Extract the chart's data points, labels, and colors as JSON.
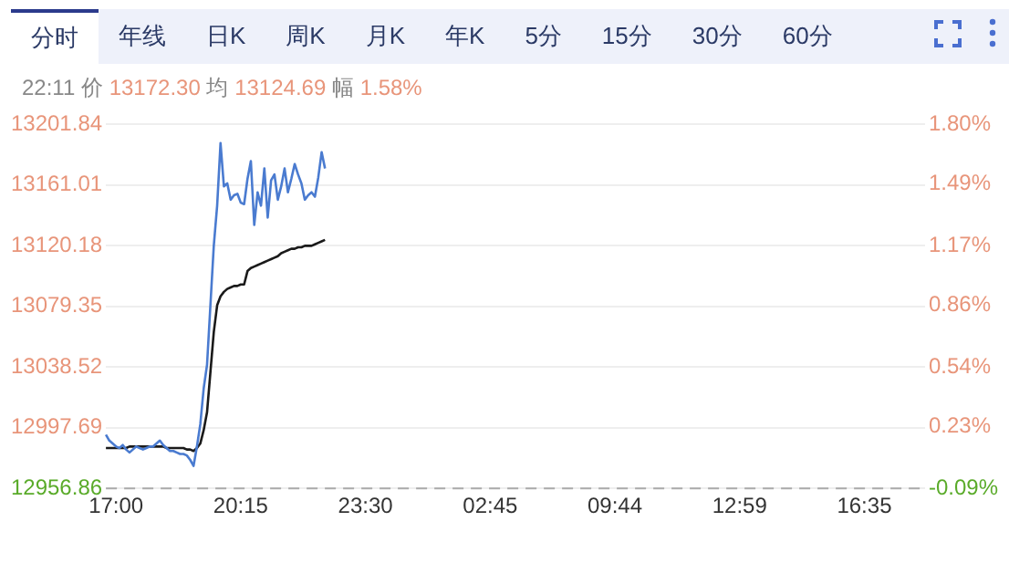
{
  "chart_data": {
    "type": "line",
    "subtitle": "22:11 价 13172.30 均 13124.69 幅 1.58%",
    "annotations": [
      "分时",
      "年线",
      "日K",
      "周K",
      "月K",
      "年K",
      "5分",
      "15分",
      "30分",
      "60分"
    ],
    "categories": [
      null,
      null,
      null,
      "17:00",
      null,
      null,
      null,
      null,
      null,
      null,
      null,
      null,
      null,
      null,
      null,
      null,
      null,
      null,
      null,
      null,
      null,
      null,
      null,
      null,
      null,
      null,
      null,
      null,
      null,
      null,
      null,
      null,
      null,
      null,
      null,
      null,
      null,
      null,
      null,
      null,
      "20:15",
      null,
      null,
      null,
      null,
      null,
      null,
      null,
      null,
      null,
      null,
      null,
      null,
      null,
      null,
      null,
      null,
      null,
      null,
      null,
      null,
      null,
      null,
      null,
      null,
      null,
      null,
      null,
      null,
      null,
      null,
      null,
      null,
      null,
      null,
      null,
      null,
      "23:30",
      null,
      null,
      null,
      null,
      null,
      null,
      null,
      null,
      null,
      null,
      null,
      null,
      null,
      null,
      null,
      null,
      null,
      null,
      null,
      null,
      null,
      null,
      null,
      null,
      null,
      null,
      null,
      null,
      null,
      null,
      null,
      null,
      null,
      null,
      null,
      null,
      "02:45",
      null,
      null,
      null,
      null,
      null,
      null,
      null,
      null,
      null,
      null,
      null,
      null,
      null,
      null,
      null,
      null,
      null,
      null,
      null,
      null,
      null,
      null,
      null,
      null,
      null,
      null,
      null,
      null,
      null,
      null,
      null,
      null,
      null,
      null,
      null,
      null,
      "09:44",
      null,
      null,
      null,
      null,
      null,
      null,
      null,
      null,
      null,
      null,
      null,
      null,
      null,
      null,
      null,
      null,
      null,
      null,
      null,
      null,
      null,
      null,
      null,
      null,
      null,
      null,
      null,
      null,
      null,
      null,
      null,
      null,
      null,
      null,
      null,
      null,
      "12:59",
      null,
      null,
      null,
      null,
      null,
      null,
      null,
      null,
      null,
      null,
      null,
      null,
      null,
      null,
      null,
      null,
      null,
      null,
      null,
      null,
      null,
      null,
      null,
      null,
      null,
      null,
      null,
      null,
      null,
      null,
      null,
      null,
      null,
      null,
      null,
      null,
      "16:35",
      null,
      null,
      null,
      null,
      null,
      null,
      null,
      null,
      null,
      null,
      null,
      null,
      null,
      null,
      null,
      null,
      null,
      null
    ],
    "ylim": [
      12956.86,
      13201.84
    ],
    "yticks": [
      12956.86,
      12997.69,
      13038.52,
      13079.35,
      13120.18,
      13161.01,
      13201.84
    ],
    "y2lim": [
      -0.09,
      1.8
    ],
    "y2ticks": [
      {
        "value": -0.09,
        "label": "-0.09%"
      },
      {
        "value": 0.23,
        "label": "0.23%"
      },
      {
        "value": 0.54,
        "label": "0.54%"
      },
      {
        "value": 0.86,
        "label": "0.86%"
      },
      {
        "value": 1.17,
        "label": "1.17%"
      },
      {
        "value": 1.49,
        "label": "1.49%"
      },
      {
        "value": 1.8,
        "label": "1.80%"
      }
    ],
    "grid": "y",
    "legend": false,
    "marker": "none",
    "line_style": "solid",
    "ref_lines": [
      {
        "axis": "y",
        "value": 12956.86,
        "label": null,
        "color": "#aaaaaa",
        "line_style": "dashed"
      }
    ],
    "series": [
      {
        "color": "#4a7bd0",
        "values": [
          12993,
          12989,
          12987,
          12985,
          12984,
          12986,
          12983,
          12981,
          12983,
          12985,
          12984,
          12983,
          12984,
          12985,
          12985,
          12987,
          12989,
          12986,
          12984,
          12982,
          12982,
          12981,
          12980,
          12980,
          12979,
          12976,
          12972,
          12985,
          13000,
          13024,
          13040,
          13080,
          13120,
          13147,
          13189,
          13160,
          13162,
          13151,
          13154,
          13155,
          13149,
          13148,
          13165,
          13177,
          13134,
          13156,
          13147,
          13172,
          13139,
          13164,
          13168,
          13151,
          13160,
          13172,
          13156,
          13165,
          13175,
          13168,
          13162,
          13151,
          13154,
          13156,
          13153,
          13166,
          13183,
          13172,
          null,
          null,
          null,
          null,
          null,
          null,
          null,
          null,
          null,
          null,
          null,
          null,
          null,
          null,
          null,
          null,
          null,
          null,
          null,
          null,
          null,
          null,
          null,
          null,
          null,
          null,
          null,
          null,
          null,
          null,
          null,
          null,
          null,
          null,
          null,
          null,
          null,
          null,
          null,
          null,
          null,
          null,
          null,
          null,
          null,
          null,
          null,
          null,
          null,
          null,
          null,
          null,
          null,
          null,
          null,
          null,
          null,
          null,
          null,
          null,
          null,
          null,
          null,
          null,
          null,
          null,
          null,
          null,
          null,
          null,
          null,
          null,
          null,
          null,
          null,
          null,
          null,
          null,
          null,
          null,
          null,
          null,
          null,
          null,
          null,
          null,
          null,
          null,
          null,
          null,
          null,
          null,
          null,
          null,
          null,
          null,
          null,
          null,
          null,
          null,
          null,
          null,
          null,
          null,
          null,
          null,
          null,
          null,
          null,
          null,
          null,
          null,
          null,
          null,
          null,
          null,
          null,
          null,
          null,
          null,
          null,
          null,
          null,
          null,
          null,
          null,
          null,
          null,
          null,
          null,
          null,
          null,
          null,
          null,
          null,
          null,
          null,
          null,
          null,
          null,
          null,
          null,
          null,
          null,
          null,
          null,
          null,
          null,
          null,
          null,
          null,
          null,
          null,
          null,
          null,
          null,
          null,
          null,
          null,
          null,
          null,
          null,
          null,
          null,
          null,
          null,
          null,
          null,
          null,
          null,
          null,
          null,
          null,
          null,
          null,
          null,
          null,
          null
        ]
      },
      {
        "color": "#1a1a1a",
        "values": [
          12984,
          12984,
          12984,
          12984,
          12984,
          12984,
          12984,
          12985,
          12985,
          12985,
          12985,
          12985,
          12985,
          12985,
          12985,
          12985,
          12985,
          12985,
          12984,
          12984,
          12984,
          12984,
          12984,
          12984,
          12983,
          12983,
          12982,
          12984,
          12987,
          12996,
          13008,
          13035,
          13062,
          13080,
          13086,
          13089,
          13091,
          13092,
          13093,
          13093,
          13094,
          13094,
          13103,
          13105,
          13106,
          13107,
          13108,
          13109,
          13110,
          13111,
          13112,
          13113,
          13115,
          13116,
          13117,
          13118,
          13118,
          13119,
          13119,
          13120,
          13120,
          13120,
          13121,
          13122,
          13123,
          13124,
          null,
          null,
          null,
          null,
          null,
          null,
          null,
          null,
          null,
          null,
          null,
          null,
          null,
          null,
          null,
          null,
          null,
          null,
          null,
          null,
          null,
          null,
          null,
          null,
          null,
          null,
          null,
          null,
          null,
          null,
          null,
          null,
          null,
          null,
          null,
          null,
          null,
          null,
          null,
          null,
          null,
          null,
          null,
          null,
          null,
          null,
          null,
          null,
          null,
          null,
          null,
          null,
          null,
          null,
          null,
          null,
          null,
          null,
          null,
          null,
          null,
          null,
          null,
          null,
          null,
          null,
          null,
          null,
          null,
          null,
          null,
          null,
          null,
          null,
          null,
          null,
          null,
          null,
          null,
          null,
          null,
          null,
          null,
          null,
          null,
          null,
          null,
          null,
          null,
          null,
          null,
          null,
          null,
          null,
          null,
          null,
          null,
          null,
          null,
          null,
          null,
          null,
          null,
          null,
          null,
          null,
          null,
          null,
          null,
          null,
          null,
          null,
          null,
          null,
          null,
          null,
          null,
          null,
          null,
          null,
          null,
          null,
          null,
          null,
          null,
          null,
          null,
          null,
          null,
          null,
          null,
          null,
          null,
          null,
          null,
          null,
          null,
          null,
          null,
          null,
          null,
          null,
          null,
          null,
          null,
          null,
          null,
          null,
          null,
          null,
          null,
          null,
          null,
          null,
          null,
          null,
          null,
          null,
          null,
          null,
          null,
          null,
          null,
          null,
          null,
          null,
          null,
          null,
          null,
          null,
          null,
          null,
          null,
          null,
          null,
          null,
          null,
          null
        ]
      }
    ]
  }
}
